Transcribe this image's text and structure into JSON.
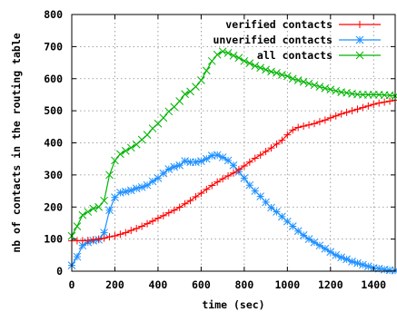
{
  "chart_data": {
    "type": "line",
    "xlabel": "time (sec)",
    "ylabel": "nb of contacts in the routing table",
    "xlim": [
      0,
      1500
    ],
    "ylim": [
      0,
      800
    ],
    "xticks": [
      "0",
      "200",
      "400",
      "600",
      "800",
      "1000",
      "1200",
      "1400"
    ],
    "yticks": [
      "0",
      "100",
      "200",
      "300",
      "400",
      "500",
      "600",
      "700",
      "800"
    ],
    "grid": true,
    "legend_position": "top-right",
    "series": [
      {
        "name": "verified contacts",
        "color": "#ff0000",
        "marker": "plus",
        "x": [
          0,
          25,
          50,
          75,
          100,
          125,
          150,
          175,
          200,
          225,
          250,
          275,
          300,
          325,
          350,
          375,
          400,
          425,
          450,
          475,
          500,
          525,
          550,
          575,
          600,
          625,
          650,
          675,
          700,
          725,
          750,
          775,
          800,
          825,
          850,
          875,
          900,
          925,
          950,
          975,
          1000,
          1025,
          1050,
          1075,
          1100,
          1125,
          1150,
          1175,
          1200,
          1225,
          1250,
          1275,
          1300,
          1325,
          1350,
          1375,
          1400,
          1425,
          1450,
          1475,
          1500
        ],
        "y": [
          95,
          95,
          95,
          96,
          98,
          100,
          103,
          107,
          110,
          115,
          120,
          127,
          133,
          140,
          148,
          156,
          165,
          173,
          182,
          190,
          199,
          210,
          220,
          232,
          243,
          255,
          267,
          278,
          288,
          297,
          306,
          317,
          328,
          340,
          352,
          362,
          373,
          384,
          396,
          408,
          425,
          440,
          448,
          452,
          456,
          460,
          466,
          471,
          478,
          484,
          490,
          495,
          500,
          505,
          510,
          515,
          520,
          524,
          527,
          530,
          533
        ]
      },
      {
        "name": "unverified contacts",
        "color": "#1e90ff",
        "marker": "star",
        "x": [
          0,
          25,
          50,
          75,
          100,
          125,
          150,
          175,
          200,
          225,
          250,
          275,
          300,
          325,
          350,
          375,
          400,
          425,
          450,
          475,
          500,
          525,
          550,
          575,
          600,
          625,
          650,
          675,
          700,
          725,
          750,
          775,
          800,
          825,
          850,
          875,
          900,
          925,
          950,
          975,
          1000,
          1025,
          1050,
          1075,
          1100,
          1125,
          1150,
          1175,
          1200,
          1225,
          1250,
          1275,
          1300,
          1325,
          1350,
          1375,
          1400,
          1425,
          1450,
          1475,
          1500
        ],
        "y": [
          18,
          45,
          80,
          90,
          95,
          98,
          120,
          190,
          230,
          245,
          248,
          252,
          258,
          262,
          268,
          280,
          290,
          305,
          318,
          325,
          330,
          343,
          340,
          340,
          343,
          350,
          360,
          362,
          355,
          345,
          330,
          310,
          290,
          268,
          250,
          233,
          215,
          198,
          185,
          170,
          155,
          140,
          125,
          112,
          100,
          90,
          80,
          70,
          60,
          50,
          43,
          37,
          30,
          25,
          20,
          15,
          10,
          8,
          5,
          3,
          2
        ]
      },
      {
        "name": "all contacts",
        "color": "#00b400",
        "marker": "cross",
        "x": [
          0,
          25,
          50,
          75,
          100,
          125,
          150,
          175,
          200,
          225,
          250,
          275,
          300,
          325,
          350,
          375,
          400,
          425,
          450,
          475,
          500,
          525,
          550,
          575,
          600,
          625,
          650,
          675,
          700,
          725,
          750,
          775,
          800,
          825,
          850,
          875,
          900,
          925,
          950,
          975,
          1000,
          1025,
          1050,
          1075,
          1100,
          1125,
          1150,
          1175,
          1200,
          1225,
          1250,
          1275,
          1300,
          1325,
          1350,
          1375,
          1400,
          1425,
          1450,
          1475,
          1500
        ],
        "y": [
          110,
          140,
          175,
          185,
          195,
          200,
          220,
          300,
          345,
          365,
          375,
          385,
          395,
          410,
          425,
          445,
          460,
          478,
          498,
          512,
          530,
          552,
          560,
          575,
          595,
          625,
          655,
          675,
          685,
          680,
          672,
          665,
          655,
          648,
          640,
          634,
          628,
          622,
          618,
          612,
          608,
          600,
          595,
          590,
          585,
          580,
          575,
          570,
          566,
          562,
          558,
          556,
          553,
          551,
          550,
          550,
          550,
          550,
          549,
          548,
          546
        ]
      }
    ]
  }
}
